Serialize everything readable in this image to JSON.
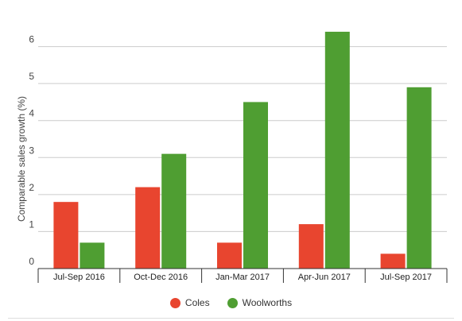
{
  "chart_data": {
    "type": "bar",
    "categories": [
      "Jul-Sep 2016",
      "Oct-Dec 2016",
      "Jan-Mar 2017",
      "Apr-Jun 2017",
      "Jul-Sep 2017"
    ],
    "series": [
      {
        "name": "Coles",
        "color": "#e8452f",
        "values": [
          1.8,
          2.2,
          0.7,
          1.2,
          0.4
        ]
      },
      {
        "name": "Woolworths",
        "color": "#4f9e32",
        "values": [
          0.7,
          3.1,
          4.5,
          6.4,
          4.9
        ]
      }
    ],
    "ylabel": "Comparable sales growth (%)",
    "ylim": [
      0,
      7
    ],
    "yticks": [
      0,
      1,
      2,
      3,
      4,
      5,
      6
    ],
    "grid": true,
    "legend": "bottom-center"
  }
}
